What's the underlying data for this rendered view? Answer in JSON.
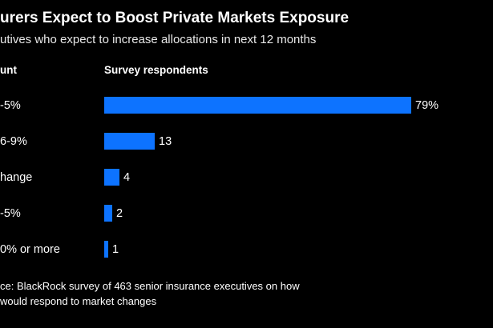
{
  "colors": {
    "background": "#000000",
    "bar": "#0d73ff",
    "text": "#ffffff"
  },
  "header": {
    "title": "urers Expect to Boost Private Markets Exposure",
    "subtitle": "utives who expect to increase allocations in next 12 months"
  },
  "table": {
    "col1_header": "unt",
    "col2_header": "Survey respondents"
  },
  "chart_data": {
    "type": "bar",
    "orientation": "horizontal",
    "title": "urers Expect to Boost Private Markets Exposure",
    "subtitle": "utives who expect to increase allocations in next 12 months",
    "xlabel": "Survey respondents",
    "ylabel": "unt",
    "categories": [
      "-5%",
      "6-9%",
      "hange",
      "-5%",
      "0% or more"
    ],
    "values": [
      79,
      13,
      4,
      2,
      1
    ],
    "value_labels": [
      "79%",
      "13",
      "4",
      "2",
      "1"
    ],
    "xlim": [
      0,
      100
    ],
    "grid": false,
    "legend": false,
    "bar_color": "#0d73ff"
  },
  "footer": {
    "line1": "ce: BlackRock survey of 463 senior insurance executives on how",
    "line2": "would respond to market changes"
  }
}
